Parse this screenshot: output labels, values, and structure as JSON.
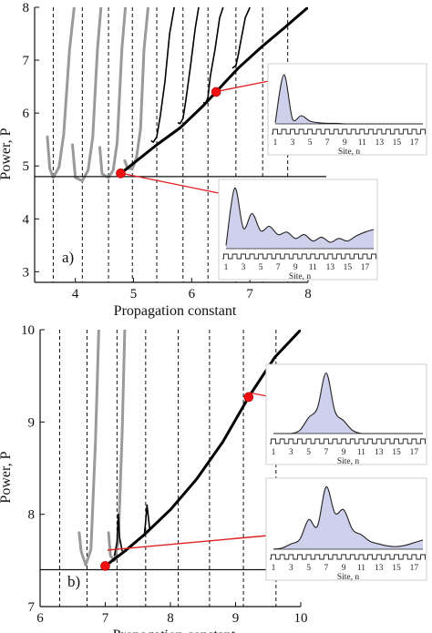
{
  "chart_data": [
    {
      "type": "line",
      "panel_label": "a)",
      "xlabel": "Propagation constant",
      "ylabel": "Power, P",
      "xlim": [
        3.3,
        8.0
      ],
      "ylim": [
        2.8,
        8.0
      ],
      "xticks": [
        4,
        5,
        6,
        7,
        8
      ],
      "yticks": [
        3,
        4,
        5,
        6,
        7,
        8
      ],
      "threshold_power": 4.8,
      "dashed_lines_x": [
        3.62,
        4.12,
        4.57,
        4.98,
        5.4,
        5.85,
        6.28,
        6.76,
        7.22,
        7.65
      ],
      "series": [
        {
          "color": "#000000",
          "x": [
            4.78,
            5.0,
            5.4,
            5.8,
            6.2,
            6.42,
            6.8,
            7.2,
            7.6,
            8.0
          ],
          "y": [
            4.86,
            5.05,
            5.4,
            5.72,
            6.14,
            6.4,
            6.85,
            7.25,
            7.62,
            8.0
          ]
        }
      ],
      "gray_branches": [
        {
          "x": [
            3.52,
            3.56,
            3.62,
            3.72,
            3.8,
            3.9,
            3.98
          ],
          "y": [
            5.55,
            4.95,
            4.78,
            4.98,
            5.6,
            7.2,
            8.0
          ]
        },
        {
          "x": [
            3.95,
            4.0,
            4.12,
            4.22,
            4.3,
            4.38,
            4.44
          ],
          "y": [
            5.4,
            4.78,
            4.72,
            4.92,
            5.55,
            7.2,
            8.0
          ]
        },
        {
          "x": [
            4.42,
            4.46,
            4.57,
            4.65,
            4.72,
            4.8,
            4.86
          ],
          "y": [
            5.35,
            4.85,
            4.78,
            4.92,
            5.45,
            7.2,
            8.0
          ]
        },
        {
          "x": [
            4.85,
            4.9,
            4.98,
            5.05,
            5.12,
            5.18,
            5.25
          ],
          "y": [
            5.1,
            4.95,
            4.95,
            5.15,
            5.7,
            7.2,
            8.0
          ]
        }
      ],
      "black_branches": [
        {
          "x": [
            5.3,
            5.34,
            5.4,
            5.46,
            5.54,
            5.62,
            5.7
          ],
          "y": [
            5.48,
            5.45,
            5.55,
            5.95,
            6.6,
            7.5,
            8.0
          ]
        },
        {
          "x": [
            5.76,
            5.8,
            5.85,
            5.9,
            5.98,
            6.06,
            6.12
          ],
          "y": [
            5.82,
            5.8,
            5.9,
            6.25,
            6.9,
            7.6,
            8.0
          ]
        },
        {
          "x": [
            6.2,
            6.24,
            6.28,
            6.32,
            6.4,
            6.48,
            6.54
          ],
          "y": [
            6.2,
            6.18,
            6.3,
            6.7,
            7.2,
            7.8,
            8.0
          ]
        },
        {
          "x": [
            6.7,
            6.76,
            6.8,
            6.86,
            6.92,
            7.0
          ],
          "y": [
            6.85,
            6.9,
            7.1,
            7.45,
            7.8,
            8.0
          ]
        }
      ],
      "markers": [
        {
          "x": 4.78,
          "y": 4.86
        },
        {
          "x": 6.42,
          "y": 6.4
        }
      ],
      "insets": [
        {
          "xlabel": "Site, n",
          "xticks": [
            "1",
            "3",
            "5",
            "7",
            "9",
            "11",
            "13",
            "15",
            "17"
          ],
          "profile": [
            0.02,
            0.9,
            0.08,
            0.15,
            0.05,
            0.02,
            0.01,
            0.01,
            0.0,
            0.0,
            0.0,
            0.0,
            0.0,
            0.0,
            0.0,
            0.0,
            0.0,
            0.0
          ]
        },
        {
          "xlabel": "Site, n",
          "xticks": [
            "1",
            "3",
            "5",
            "7",
            "9",
            "11",
            "13",
            "15",
            "17"
          ],
          "profile": [
            0.05,
            0.95,
            0.32,
            0.55,
            0.28,
            0.35,
            0.22,
            0.26,
            0.16,
            0.22,
            0.12,
            0.18,
            0.1,
            0.16,
            0.12,
            0.2,
            0.26,
            0.3
          ]
        }
      ]
    },
    {
      "type": "line",
      "panel_label": "b)",
      "xlabel": "Propagation constant",
      "ylabel": "Power, P",
      "xlim": [
        6.0,
        10.0
      ],
      "ylim": [
        7.0,
        10.0
      ],
      "xticks": [
        6,
        7,
        8,
        9,
        10
      ],
      "yticks": [
        7,
        8,
        9,
        10
      ],
      "threshold_power": 7.4,
      "dashed_lines_x": [
        6.3,
        6.72,
        7.18,
        7.62,
        8.12,
        8.6,
        9.12,
        9.62
      ],
      "series": [
        {
          "color": "#000000",
          "x": [
            7.0,
            7.3,
            7.6,
            8.0,
            8.4,
            8.8,
            9.2,
            9.6,
            10.0
          ],
          "y": [
            7.44,
            7.6,
            7.78,
            8.05,
            8.38,
            8.78,
            9.27,
            9.7,
            10.0
          ]
        }
      ],
      "gray_branches": [
        {
          "x": [
            6.6,
            6.63,
            6.7,
            6.78,
            6.85,
            6.9
          ],
          "y": [
            7.8,
            7.6,
            7.45,
            7.62,
            8.8,
            10.0
          ]
        },
        {
          "x": [
            7.05,
            7.08,
            7.14,
            7.2,
            7.26,
            7.3
          ],
          "y": [
            7.8,
            7.55,
            7.5,
            7.7,
            8.9,
            10.0
          ]
        }
      ],
      "black_branches": [
        {
          "x": [
            7.14,
            7.18,
            7.2,
            7.22,
            7.26
          ],
          "y": [
            7.55,
            7.7,
            8.0,
            7.75,
            7.6
          ]
        },
        {
          "x": [
            7.6,
            7.62,
            7.64,
            7.68
          ],
          "y": [
            7.78,
            7.92,
            8.1,
            7.85
          ]
        }
      ],
      "markers": [
        {
          "x": 7.0,
          "y": 7.44
        },
        {
          "x": 9.2,
          "y": 9.27
        }
      ],
      "insets": [
        {
          "xlabel": "Site, n",
          "xticks": [
            "1",
            "3",
            "5",
            "7",
            "9",
            "11",
            "13",
            "15",
            "17"
          ],
          "profile": [
            0.0,
            0.0,
            0.0,
            0.05,
            0.25,
            0.4,
            0.95,
            0.35,
            0.2,
            0.05,
            0.0,
            0.0,
            0.0,
            0.0,
            0.0,
            0.0,
            0.0,
            0.0
          ]
        },
        {
          "xlabel": "Site, n",
          "xticks": [
            "1",
            "3",
            "5",
            "7",
            "9",
            "11",
            "13",
            "15",
            "17"
          ],
          "profile": [
            0.0,
            0.02,
            0.08,
            0.15,
            0.45,
            0.35,
            0.95,
            0.55,
            0.6,
            0.3,
            0.22,
            0.12,
            0.08,
            0.05,
            0.04,
            0.06,
            0.1,
            0.14
          ]
        }
      ]
    }
  ]
}
